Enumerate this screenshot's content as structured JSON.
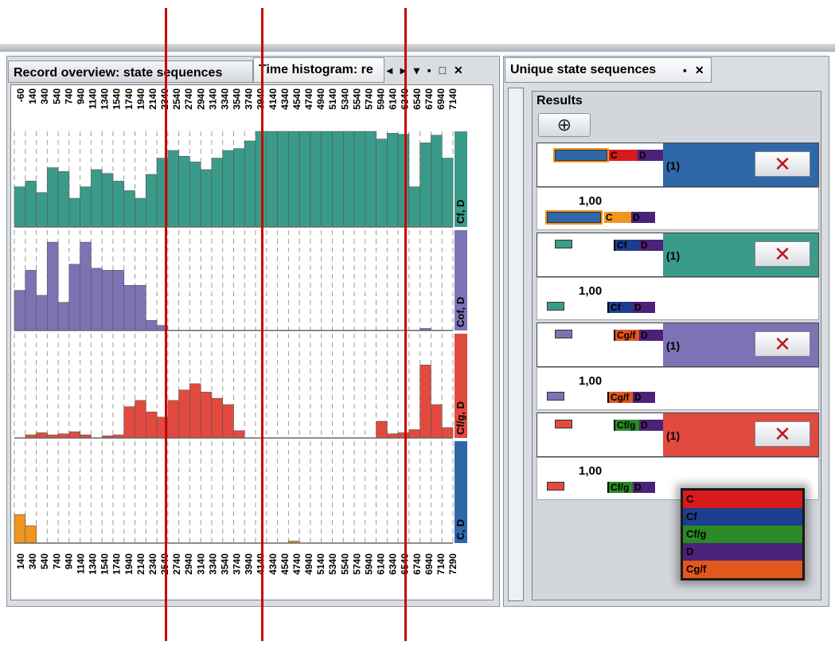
{
  "left_window": {
    "tab1": "Record overview: state sequences",
    "tab2": "Time histogram: re",
    "tab_controls": "◂ ▸ ▾ ▪ □ ✕"
  },
  "right_window": {
    "tab": "Unique state sequences",
    "tab_controls": "▪ ✕",
    "results_label": "Results",
    "add_symbol": "⊕",
    "delete_symbol": "✕",
    "sequences": [
      {
        "count": "(1)",
        "value": "1,00",
        "states": [
          "C",
          "D"
        ],
        "color": "#2f68a8"
      },
      {
        "count": "(1)",
        "value": "1,00",
        "states": [
          "Cf",
          "D"
        ],
        "color": "#3b9b8a"
      },
      {
        "count": "(1)",
        "value": "1,00",
        "states": [
          "Cg/f",
          "D"
        ],
        "color": "#7c73b4"
      },
      {
        "count": "(1)",
        "value": "1,00",
        "states": [
          "Cf/g",
          "D"
        ],
        "color": "#e24a40"
      }
    ]
  },
  "legend": [
    {
      "label": "C",
      "color": "#d71a1a"
    },
    {
      "label": "Cf",
      "color": "#1c3e8c"
    },
    {
      "label": "Cf/g",
      "color": "#2a8a26"
    },
    {
      "label": "D",
      "color": "#4b2277"
    },
    {
      "label": "Cg/f",
      "color": "#e2571c"
    }
  ],
  "chart_data": {
    "type": "bar",
    "top_ticks": [
      "-60",
      "140",
      "340",
      "540",
      "740",
      "940",
      "1140",
      "1340",
      "1540",
      "1740",
      "1940",
      "2140",
      "2340",
      "2540",
      "2740",
      "2940",
      "3140",
      "3340",
      "3540",
      "3740",
      "3940",
      "4140",
      "4340",
      "4540",
      "4740",
      "4940",
      "5140",
      "5340",
      "5540",
      "5740",
      "5940",
      "6140",
      "6340",
      "6540",
      "6740",
      "6940",
      "7140"
    ],
    "bottom_ticks": [
      "140",
      "340",
      "540",
      "740",
      "940",
      "1140",
      "1340",
      "1540",
      "1740",
      "1940",
      "2140",
      "2340",
      "2540",
      "2740",
      "2940",
      "3140",
      "3340",
      "3540",
      "3740",
      "3940",
      "4140",
      "4340",
      "4540",
      "4740",
      "4940",
      "5140",
      "5340",
      "5540",
      "5740",
      "5940",
      "6140",
      "6340",
      "6540",
      "6740",
      "6940",
      "7140",
      "7290"
    ],
    "ylim": [
      0,
      1
    ],
    "series": [
      {
        "name": "Cf, D",
        "color": "#3b9b8a",
        "values": [
          0.42,
          0.48,
          0.36,
          0.62,
          0.58,
          0.3,
          0.42,
          0.6,
          0.56,
          0.48,
          0.38,
          0.3,
          0.55,
          0.72,
          0.8,
          0.74,
          0.68,
          0.6,
          0.72,
          0.8,
          0.82,
          0.9,
          1,
          1,
          1,
          1,
          1,
          1,
          1,
          1,
          1,
          1,
          1,
          0.92,
          0.98,
          0.97,
          0.42,
          0.88,
          0.96,
          0.72
        ]
      },
      {
        "name": "Cof, D",
        "color": "#7c73b4",
        "values": [
          0.4,
          0.6,
          0.35,
          0.88,
          0.28,
          0.66,
          0.88,
          0.62,
          0.6,
          0.6,
          0.45,
          0.45,
          0.1,
          0.05,
          0,
          0,
          0,
          0,
          0,
          0,
          0,
          0,
          0,
          0,
          0,
          0,
          0,
          0,
          0,
          0,
          0,
          0,
          0,
          0,
          0,
          0,
          0,
          0.02,
          0,
          0
        ]
      },
      {
        "name": "Cf/g, D",
        "color": "#e24a40",
        "values": [
          0,
          0.03,
          0.05,
          0.03,
          0.04,
          0.06,
          0.03,
          0,
          0.02,
          0.03,
          0.3,
          0.36,
          0.25,
          0.2,
          0.36,
          0.46,
          0.52,
          0.44,
          0.38,
          0.32,
          0.07,
          0,
          0,
          0,
          0,
          0,
          0,
          0,
          0,
          0,
          0,
          0,
          0,
          0.16,
          0.04,
          0.05,
          0.08,
          0.7,
          0.32,
          0.1
        ]
      },
      {
        "name": "C, D",
        "color": "#2f68a8",
        "bar_color": "#f0961e",
        "values": [
          0.28,
          0.17,
          0,
          0,
          0,
          0,
          0,
          0,
          0,
          0,
          0,
          0,
          0,
          0,
          0,
          0,
          0,
          0,
          0,
          0,
          0,
          0,
          0,
          0,
          0,
          0.02,
          0,
          0,
          0,
          0,
          0,
          0,
          0,
          0,
          0,
          0,
          0,
          0,
          0,
          0
        ]
      }
    ]
  }
}
